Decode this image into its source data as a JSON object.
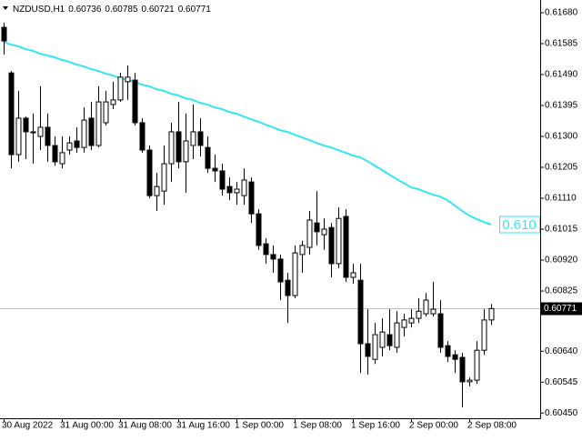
{
  "chart_data": {
    "type": "candlestick",
    "symbol": "NZDUSD,H1",
    "categories": [
      "30 Aug 2022",
      null,
      null,
      null,
      null,
      null,
      null,
      null,
      "31 Aug 00:00",
      null,
      null,
      null,
      null,
      null,
      null,
      null,
      "31 Aug 08:00",
      null,
      null,
      null,
      null,
      null,
      null,
      null,
      "31 Aug 16:00",
      null,
      null,
      null,
      null,
      null,
      null,
      null,
      "1 Sep 00:00",
      null,
      null,
      null,
      null,
      null,
      null,
      null,
      "1 Sep 08:00",
      null,
      null,
      null,
      null,
      null,
      null,
      null,
      "1 Sep 16:00",
      null,
      null,
      null,
      null,
      null,
      null,
      null,
      "2 Sep 00:00",
      null,
      null,
      null,
      null,
      null,
      null,
      null,
      "2 Sep 08:00",
      null,
      null,
      null
    ],
    "open": [
      0.61635,
      0.61495,
      0.61244,
      0.61356,
      0.61314,
      0.613,
      0.61328,
      0.61272,
      0.61216,
      0.61258,
      0.61286,
      0.61266,
      0.61356,
      0.61272,
      0.61342,
      0.61398,
      0.61412,
      0.61468,
      0.61473,
      0.61342,
      0.61258,
      0.61118,
      0.61132,
      0.61216,
      0.61314,
      0.61222,
      0.61272,
      0.61314,
      0.61266,
      0.61202,
      0.61194,
      0.61146,
      0.61127,
      0.61118,
      0.6116,
      0.61062,
      0.6097,
      0.60937,
      0.60923,
      0.60858,
      0.60811,
      0.60937,
      0.60959,
      0.61034,
      0.60998,
      0.6102,
      0.60909,
      0.61054,
      0.60867,
      0.60858,
      0.60663,
      0.60615,
      0.60652,
      0.60691,
      0.60652,
      0.60713,
      0.60727,
      0.60741,
      0.60755,
      0.60755,
      0.60755,
      0.60657,
      0.60629,
      0.60621,
      0.60546,
      0.60551,
      0.60643,
      0.60736
    ],
    "high": [
      0.61649,
      0.61501,
      0.6144,
      0.61361,
      0.6137,
      0.61454,
      0.6137,
      0.613,
      0.613,
      0.613,
      0.61328,
      0.61389,
      0.61406,
      0.61454,
      0.6144,
      0.61468,
      0.61495,
      0.61518,
      0.61495,
      0.61356,
      0.61272,
      0.61188,
      0.61272,
      0.61342,
      0.61406,
      0.6137,
      0.61398,
      0.61356,
      0.613,
      0.61244,
      0.61216,
      0.61174,
      0.6116,
      0.61202,
      0.61174,
      0.61076,
      0.60987,
      0.60965,
      0.60937,
      0.60881,
      0.60965,
      0.60979,
      0.61071,
      0.61132,
      0.61048,
      0.61034,
      0.61082,
      0.61076,
      0.60909,
      0.60909,
      0.60769,
      0.60727,
      0.60741,
      0.60769,
      0.60763,
      0.60755,
      0.60769,
      0.60803,
      0.60819,
      0.60853,
      0.60797,
      0.60671,
      0.60643,
      0.60635,
      0.60559,
      0.60671,
      0.60769,
      0.60785
    ],
    "low": [
      0.61551,
      0.61202,
      0.61222,
      0.6123,
      0.61216,
      0.61258,
      0.61222,
      0.6121,
      0.61202,
      0.61244,
      0.6125,
      0.6125,
      0.61258,
      0.61266,
      0.61333,
      0.61384,
      0.61406,
      0.61412,
      0.61333,
      0.6125,
      0.6111,
      0.61071,
      0.6109,
      0.6116,
      0.61202,
      0.61127,
      0.6123,
      0.61238,
      0.61188,
      0.6116,
      0.61118,
      0.61104,
      0.6109,
      0.6109,
      0.61034,
      0.60951,
      0.60909,
      0.60881,
      0.60797,
      0.60727,
      0.60803,
      0.60881,
      0.60937,
      0.60965,
      0.60951,
      0.60867,
      0.60895,
      0.60853,
      0.60847,
      0.60573,
      0.60568,
      0.60601,
      0.60624,
      0.60643,
      0.60635,
      0.60685,
      0.60713,
      0.60727,
      0.60747,
      0.60747,
      0.60635,
      0.60607,
      0.60573,
      0.60467,
      0.60532,
      0.6054,
      0.60629,
      0.60721
    ],
    "close": [
      0.61593,
      0.61244,
      0.61356,
      0.61314,
      0.61311,
      0.61328,
      0.61272,
      0.61222,
      0.6125,
      0.6128,
      0.61266,
      0.6135,
      0.61272,
      0.61406,
      0.61406,
      0.61412,
      0.61482,
      0.61482,
      0.61342,
      0.61258,
      0.61118,
      0.61146,
      0.61216,
      0.61314,
      0.61222,
      0.61286,
      0.61314,
      0.61272,
      0.61202,
      0.61194,
      0.61138,
      0.61127,
      0.61138,
      0.61166,
      0.61062,
      0.60965,
      0.60937,
      0.60923,
      0.60853,
      0.60811,
      0.60942,
      0.60965,
      0.61043,
      0.61007,
      0.61015,
      0.60909,
      0.61048,
      0.60867,
      0.60881,
      0.60663,
      0.60624,
      0.60691,
      0.60699,
      0.60657,
      0.60727,
      0.60736,
      0.60741,
      0.60763,
      0.60797,
      0.60769,
      0.60652,
      0.60624,
      0.60615,
      0.60546,
      0.60551,
      0.60643,
      0.60736,
      0.60771
    ],
    "bull_color": "#ffffff",
    "bear_color": "#000000",
    "moving_average": {
      "color": "#33e6f2",
      "label": "0.610",
      "values": [
        0.6159,
        0.61582,
        0.61577,
        0.61568,
        0.61563,
        0.61554,
        0.61549,
        0.61543,
        0.61535,
        0.61529,
        0.61521,
        0.61515,
        0.61507,
        0.61501,
        0.61493,
        0.61487,
        0.61479,
        0.61473,
        0.61468,
        0.61459,
        0.61454,
        0.61445,
        0.6144,
        0.61431,
        0.61426,
        0.61417,
        0.61412,
        0.61403,
        0.61398,
        0.61389,
        0.61384,
        0.61375,
        0.6137,
        0.61361,
        0.61353,
        0.61345,
        0.61336,
        0.61328,
        0.61319,
        0.61314,
        0.61305,
        0.61297,
        0.61289,
        0.6128,
        0.61272,
        0.61266,
        0.61258,
        0.6125,
        0.61241,
        0.61236,
        0.61224,
        0.6121,
        0.61197,
        0.61183,
        0.61169,
        0.61157,
        0.61143,
        0.61138,
        0.61129,
        0.61121,
        0.61115,
        0.61104,
        0.61088,
        0.61071,
        0.61057,
        0.61046,
        0.61037,
        0.61029
      ]
    },
    "ylim": [
      0.60434,
      0.61719
    ],
    "yticks": [
      {
        "value": 0.6168,
        "label": "0.61680"
      },
      {
        "value": 0.61585,
        "label": "0.61585"
      },
      {
        "value": 0.6149,
        "label": "0.61490"
      },
      {
        "value": 0.61395,
        "label": "0.61395"
      },
      {
        "value": 0.613,
        "label": "0.61300"
      },
      {
        "value": 0.61205,
        "label": "0.61205"
      },
      {
        "value": 0.6111,
        "label": "0.61110"
      },
      {
        "value": 0.61015,
        "label": "0.61015"
      },
      {
        "value": 0.6092,
        "label": "0.60920"
      },
      {
        "value": 0.60825,
        "label": "0.60825"
      },
      {
        "value": 0.6064,
        "label": "0.60640"
      },
      {
        "value": 0.60545,
        "label": "0.60545"
      },
      {
        "value": 0.6045,
        "label": "0.60450"
      }
    ]
  }
}
